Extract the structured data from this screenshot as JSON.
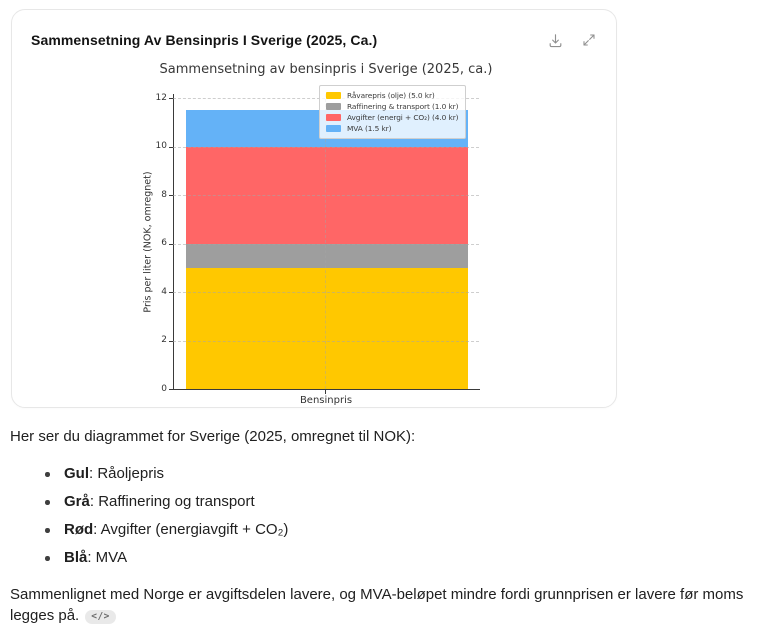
{
  "card": {
    "title": "Sammensetning Av Bensinpris I Sverige (2025, Ca.)"
  },
  "chart_data": {
    "type": "bar",
    "stacked": true,
    "title": "Sammensetning av bensinpris i Sverige (2025, ca.)",
    "ylabel": "Pris per liter (NOK, omregnet)",
    "xlabel": "",
    "categories": [
      "Bensinpris"
    ],
    "series": [
      {
        "name": "Råvarepris (olje) (5.0 kr)",
        "values": [
          5.0
        ],
        "color": "#FFC800"
      },
      {
        "name": "Raffinering & transport (1.0 kr)",
        "values": [
          1.0
        ],
        "color": "#9E9E9E"
      },
      {
        "name": "Avgifter (energi + CO₂) (4.0 kr)",
        "values": [
          4.0
        ],
        "color": "#FF6666"
      },
      {
        "name": "MVA (1.5 kr)",
        "values": [
          1.5
        ],
        "color": "#64B2F7"
      }
    ],
    "total": 11.5,
    "yticks": [
      0,
      2,
      4,
      6,
      8,
      10,
      12
    ],
    "ylim": [
      0,
      12.2
    ],
    "grid": true,
    "legend_position": "upper right"
  },
  "prose": {
    "intro": "Her ser du diagrammet for Sverige (2025, omregnet til NOK):",
    "bullets": [
      {
        "term": "Gul",
        "desc": ": Råoljepris"
      },
      {
        "term": "Grå",
        "desc": ": Raffinering og transport"
      },
      {
        "term": "Rød",
        "desc": ": Avgifter (energiavgift + CO₂)"
      },
      {
        "term": "Blå",
        "desc": ": MVA"
      }
    ],
    "closing": "Sammenlignet med Norge er avgiftsdelen lavere, og MVA-beløpet mindre fordi grunnprisen er lavere før moms legges på.",
    "code_pill": "</>"
  }
}
